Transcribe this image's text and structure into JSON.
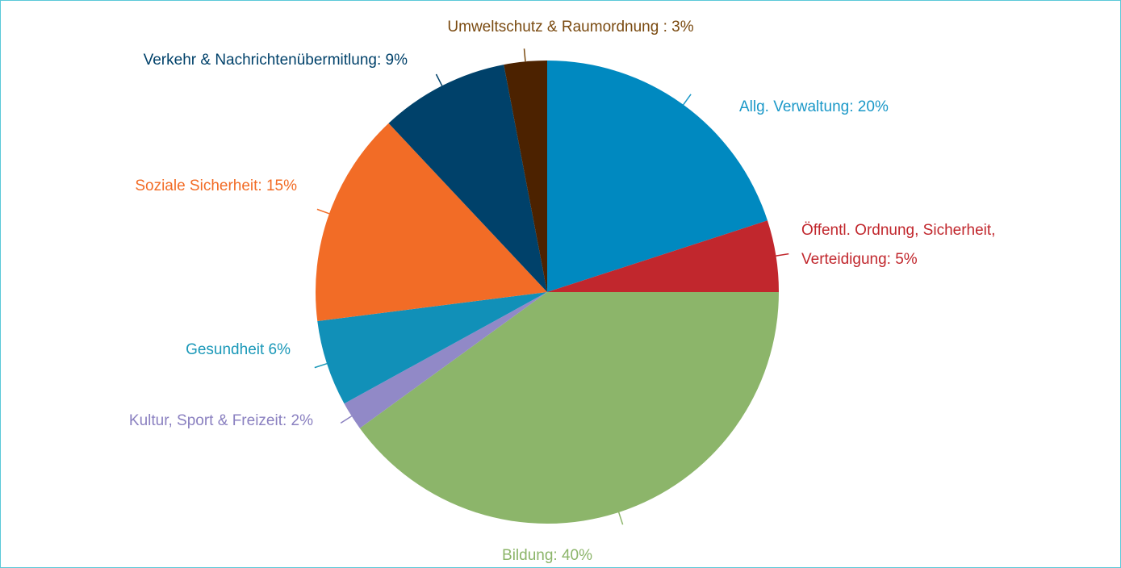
{
  "chart_data": {
    "type": "pie",
    "labels": [
      [
        "Allg. Verwaltung: 20%"
      ],
      [
        "Öffentl. Ordnung, Sicherheit,",
        "Verteidigung: 5%"
      ],
      [
        "Bildung: 40%"
      ],
      [
        "Kultur, Sport & Freizeit: 2%"
      ],
      [
        "Gesundheit 6%"
      ],
      [
        "Soziale Sicherheit: 15%"
      ],
      [
        "Verkehr & Nachrichtenübermitlung: 9%"
      ],
      [
        "Umweltschutz & Raumordnung : 3%"
      ]
    ],
    "values": [
      20,
      5,
      40,
      2,
      6,
      15,
      9,
      3
    ],
    "colors": [
      "#0089c0",
      "#c1272d",
      "#8cb56a",
      "#9189c7",
      "#1190b8",
      "#f26c26",
      "#00416a",
      "#4c2200"
    ],
    "label_colors": [
      "#1a98c8",
      "#c1272d",
      "#8cb56a",
      "#8a80c0",
      "#1a98b8",
      "#f26c26",
      "#00416a",
      "#7a4a10"
    ]
  }
}
